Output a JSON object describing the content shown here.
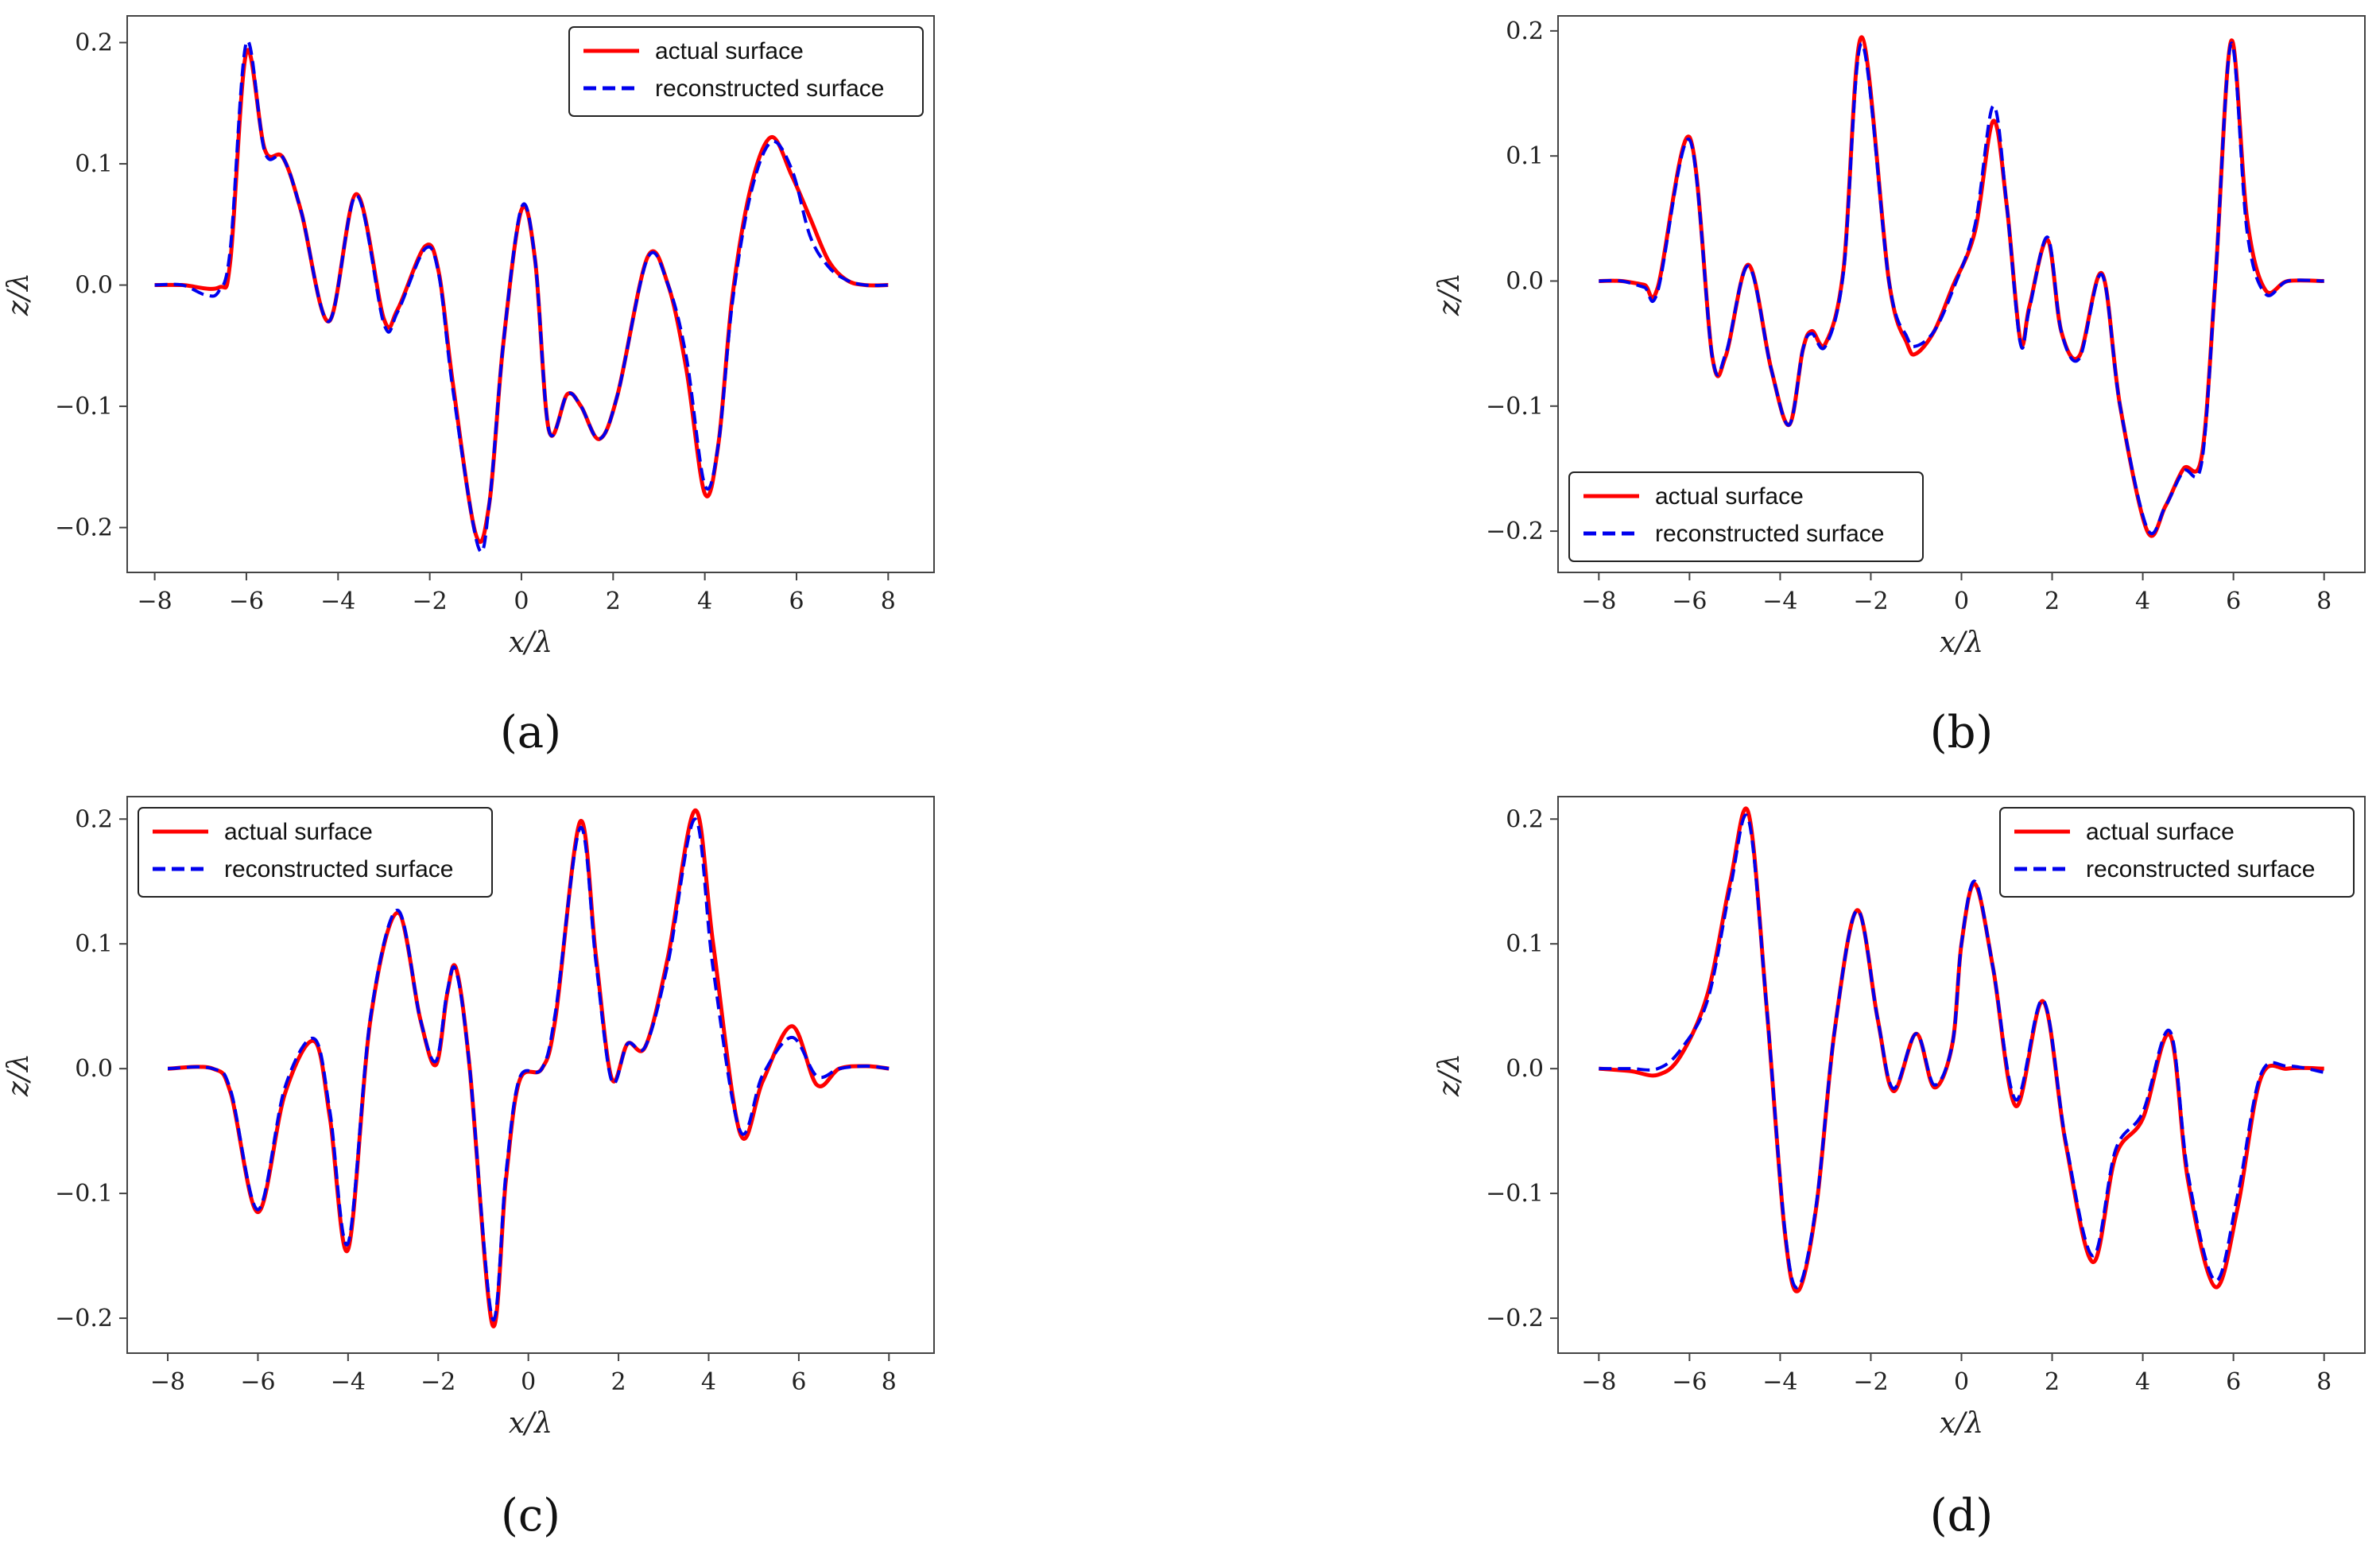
{
  "figure": {
    "colors": {
      "actual": "#ff0000",
      "reconstructed": "#0000ee",
      "axis": "#444444"
    }
  },
  "chart_data": [
    {
      "id": "a",
      "panel_label": "(a)",
      "type": "line",
      "xlabel": "x/λ",
      "ylabel": "z/λ",
      "xlim": [
        -8.6,
        9.0
      ],
      "ylim": [
        -0.237,
        0.222
      ],
      "xticks": [
        -8,
        -6,
        -4,
        -2,
        0,
        2,
        4,
        6,
        8
      ],
      "yticks": [
        -0.2,
        -0.1,
        0.0,
        0.1,
        0.2
      ],
      "ytick_labels": [
        "−0.2",
        "−0.1",
        "0.0",
        "0.1",
        "0.2"
      ],
      "xtick_labels": [
        "−8",
        "−6",
        "−4",
        "−2",
        "0",
        "2",
        "4",
        "6",
        "8"
      ],
      "legend_position": "top-right",
      "series": [
        {
          "name": "actual surface",
          "style": "solid",
          "x": [
            -8,
            -7.4,
            -6.6,
            -6.35,
            -6.0,
            -5.6,
            -5.2,
            -4.8,
            -4.2,
            -3.6,
            -3.0,
            -2.7,
            -2.1,
            -1.8,
            -1.5,
            -1.0,
            -0.7,
            -0.4,
            0.0,
            0.3,
            0.6,
            1.0,
            1.3,
            1.7,
            2.1,
            2.75,
            3.2,
            3.6,
            4.0,
            4.3,
            4.6,
            5.0,
            5.45,
            5.9,
            6.3,
            6.7,
            7.1,
            7.5,
            8.0
          ],
          "values": [
            0.0,
            0.0,
            -0.002,
            0.02,
            0.192,
            0.112,
            0.105,
            0.06,
            -0.03,
            0.075,
            -0.028,
            -0.02,
            0.032,
            0.01,
            -0.08,
            -0.205,
            -0.18,
            -0.05,
            0.062,
            0.02,
            -0.12,
            -0.09,
            -0.1,
            -0.127,
            -0.09,
            0.023,
            0.0,
            -0.07,
            -0.172,
            -0.13,
            -0.01,
            0.08,
            0.122,
            0.09,
            0.055,
            0.02,
            0.004,
            0.0,
            0.0
          ]
        },
        {
          "name": "reconstructed surface",
          "style": "dashed",
          "x": [
            -8,
            -7.4,
            -6.9,
            -6.6,
            -6.35,
            -6.0,
            -5.6,
            -5.2,
            -4.8,
            -4.2,
            -3.6,
            -3.0,
            -2.7,
            -2.1,
            -1.8,
            -1.5,
            -0.95,
            -0.7,
            -0.4,
            0.0,
            0.3,
            0.6,
            1.0,
            1.3,
            1.7,
            2.1,
            2.75,
            3.2,
            3.6,
            4.0,
            4.3,
            4.6,
            5.0,
            5.45,
            5.9,
            6.3,
            6.7,
            7.1,
            7.5,
            8.0
          ],
          "values": [
            0.0,
            0.0,
            -0.008,
            -0.005,
            0.03,
            0.2,
            0.11,
            0.105,
            0.06,
            -0.03,
            0.074,
            -0.032,
            -0.022,
            0.03,
            0.008,
            -0.085,
            -0.215,
            -0.18,
            -0.05,
            0.064,
            0.02,
            -0.12,
            -0.09,
            -0.1,
            -0.127,
            -0.09,
            0.022,
            0.0,
            -0.06,
            -0.165,
            -0.13,
            -0.015,
            0.075,
            0.118,
            0.095,
            0.04,
            0.015,
            0.004,
            0.0,
            0.0
          ]
        }
      ]
    },
    {
      "id": "b",
      "panel_label": "(b)",
      "type": "line",
      "xlabel": "x/λ",
      "ylabel": "z/λ",
      "xlim": [
        -8.9,
        8.9
      ],
      "ylim": [
        -0.233,
        0.212
      ],
      "xticks": [
        -8,
        -6,
        -4,
        -2,
        0,
        2,
        4,
        6,
        8
      ],
      "yticks": [
        -0.2,
        -0.1,
        0.0,
        0.1,
        0.2
      ],
      "ytick_labels": [
        "−0.2",
        "−0.1",
        "0.0",
        "0.1",
        "0.2"
      ],
      "xtick_labels": [
        "−8",
        "−6",
        "−4",
        "−2",
        "0",
        "2",
        "4",
        "6",
        "8"
      ],
      "legend_position": "bottom-left",
      "series": [
        {
          "name": "actual surface",
          "style": "solid",
          "x": [
            -8,
            -7.5,
            -7.0,
            -6.7,
            -6.0,
            -5.5,
            -5.2,
            -4.7,
            -4.2,
            -3.8,
            -3.5,
            -3.3,
            -3.0,
            -2.6,
            -2.2,
            -1.6,
            -1.2,
            -1.0,
            -0.6,
            -0.2,
            0.3,
            0.7,
            1.0,
            1.3,
            1.5,
            1.9,
            2.2,
            2.6,
            3.1,
            3.5,
            4.1,
            4.5,
            4.9,
            5.3,
            5.6,
            5.95,
            6.3,
            6.7,
            7.2,
            8.0
          ],
          "values": [
            0.0,
            0.0,
            -0.003,
            -0.005,
            0.115,
            -0.06,
            -0.06,
            0.013,
            -0.07,
            -0.115,
            -0.055,
            -0.04,
            -0.05,
            0.01,
            0.195,
            0.0,
            -0.05,
            -0.058,
            -0.04,
            -0.005,
            0.04,
            0.128,
            0.06,
            -0.048,
            -0.02,
            0.033,
            -0.04,
            -0.06,
            0.006,
            -0.1,
            -0.2,
            -0.18,
            -0.15,
            -0.14,
            0.0,
            0.192,
            0.05,
            -0.007,
            0.0,
            0.0
          ]
        },
        {
          "name": "reconstructed surface",
          "style": "dashed",
          "x": [
            -8,
            -7.5,
            -7.0,
            -6.7,
            -6.0,
            -5.5,
            -5.2,
            -4.7,
            -4.2,
            -3.8,
            -3.5,
            -3.3,
            -3.0,
            -2.6,
            -2.2,
            -1.6,
            -1.2,
            -1.0,
            -0.6,
            -0.2,
            0.3,
            0.7,
            1.0,
            1.3,
            1.5,
            1.9,
            2.2,
            2.6,
            3.1,
            3.5,
            4.1,
            4.5,
            4.9,
            5.3,
            5.6,
            5.95,
            6.3,
            6.7,
            7.2,
            8.0
          ],
          "values": [
            0.0,
            0.0,
            -0.005,
            -0.008,
            0.113,
            -0.06,
            -0.058,
            0.012,
            -0.07,
            -0.115,
            -0.055,
            -0.042,
            -0.052,
            0.008,
            0.19,
            0.0,
            -0.045,
            -0.052,
            -0.04,
            -0.008,
            0.045,
            0.14,
            0.06,
            -0.05,
            -0.022,
            0.035,
            -0.04,
            -0.062,
            0.005,
            -0.1,
            -0.198,
            -0.18,
            -0.152,
            -0.145,
            0.0,
            0.19,
            0.04,
            -0.01,
            0.0,
            0.0
          ]
        }
      ]
    },
    {
      "id": "c",
      "panel_label": "(c)",
      "type": "line",
      "xlabel": "x/λ",
      "ylabel": "z/λ",
      "xlim": [
        -8.9,
        9.0
      ],
      "ylim": [
        -0.228,
        0.218
      ],
      "xticks": [
        -8,
        -6,
        -4,
        -2,
        0,
        2,
        4,
        6,
        8
      ],
      "yticks": [
        -0.2,
        -0.1,
        0.0,
        0.1,
        0.2
      ],
      "ytick_labels": [
        "−0.2",
        "−0.1",
        "0.0",
        "0.1",
        "0.2"
      ],
      "xtick_labels": [
        "−8",
        "−6",
        "−4",
        "−2",
        "0",
        "2",
        "4",
        "6",
        "8"
      ],
      "legend_position": "top-left",
      "series": [
        {
          "name": "actual surface",
          "style": "solid",
          "x": [
            -8,
            -7.0,
            -6.6,
            -6.0,
            -5.4,
            -4.75,
            -4.4,
            -4.0,
            -3.5,
            -2.9,
            -2.4,
            -2.05,
            -1.8,
            -1.6,
            -1.3,
            -0.8,
            -0.5,
            -0.2,
            0.3,
            0.6,
            1.15,
            1.5,
            1.85,
            2.2,
            2.6,
            3.1,
            3.7,
            4.1,
            4.7,
            5.2,
            5.85,
            6.4,
            6.9,
            7.5,
            8.0
          ],
          "values": [
            0.0,
            0.0,
            -0.02,
            -0.115,
            -0.02,
            0.022,
            -0.04,
            -0.145,
            0.04,
            0.125,
            0.04,
            0.003,
            0.06,
            0.08,
            0.0,
            -0.205,
            -0.09,
            -0.01,
            0.0,
            0.04,
            0.198,
            0.09,
            -0.008,
            0.02,
            0.018,
            0.09,
            0.207,
            0.1,
            -0.052,
            -0.01,
            0.034,
            -0.013,
            0.0,
            0.002,
            0.0
          ]
        },
        {
          "name": "reconstructed surface",
          "style": "dashed",
          "x": [
            -8,
            -7.0,
            -6.6,
            -6.0,
            -5.4,
            -4.75,
            -4.4,
            -4.0,
            -3.5,
            -2.9,
            -2.4,
            -2.05,
            -1.8,
            -1.6,
            -1.3,
            -0.8,
            -0.5,
            -0.2,
            0.3,
            0.6,
            1.15,
            1.5,
            1.85,
            2.2,
            2.6,
            3.1,
            3.7,
            4.1,
            4.7,
            5.2,
            5.85,
            6.4,
            6.9,
            7.5,
            8.0
          ],
          "values": [
            0.0,
            0.0,
            -0.018,
            -0.113,
            -0.015,
            0.024,
            -0.035,
            -0.14,
            0.042,
            0.127,
            0.04,
            0.006,
            0.062,
            0.078,
            0.0,
            -0.2,
            -0.085,
            -0.008,
            0.0,
            0.045,
            0.193,
            0.085,
            -0.01,
            0.02,
            0.018,
            0.085,
            0.2,
            0.08,
            -0.05,
            -0.005,
            0.025,
            -0.006,
            0.0,
            0.002,
            0.0
          ]
        }
      ]
    },
    {
      "id": "d",
      "panel_label": "(d)",
      "type": "line",
      "xlabel": "x/λ",
      "ylabel": "z/λ",
      "xlim": [
        -8.9,
        8.9
      ],
      "ylim": [
        -0.228,
        0.218
      ],
      "xticks": [
        -8,
        -6,
        -4,
        -2,
        0,
        2,
        4,
        6,
        8
      ],
      "yticks": [
        -0.2,
        -0.1,
        0.0,
        0.1,
        0.2
      ],
      "ytick_labels": [
        "−0.2",
        "−0.1",
        "0.0",
        "0.1",
        "0.2"
      ],
      "xtick_labels": [
        "−8",
        "−6",
        "−4",
        "−2",
        "0",
        "2",
        "4",
        "6",
        "8"
      ],
      "legend_position": "top-right",
      "series": [
        {
          "name": "actual surface",
          "style": "solid",
          "x": [
            -8,
            -7.3,
            -6.7,
            -6.2,
            -5.6,
            -5.1,
            -4.7,
            -4.3,
            -3.9,
            -3.6,
            -3.2,
            -2.8,
            -2.3,
            -1.85,
            -1.5,
            -1.0,
            -0.6,
            -0.2,
            0.0,
            0.3,
            0.7,
            1.2,
            1.8,
            2.3,
            2.9,
            3.4,
            4.0,
            4.6,
            5.0,
            5.6,
            6.1,
            6.6,
            7.2,
            8.0
          ],
          "values": [
            0.0,
            -0.002,
            -0.005,
            0.01,
            0.06,
            0.15,
            0.205,
            0.05,
            -0.13,
            -0.178,
            -0.11,
            0.03,
            0.127,
            0.04,
            -0.018,
            0.028,
            -0.015,
            0.02,
            0.1,
            0.148,
            0.08,
            -0.03,
            0.054,
            -0.06,
            -0.155,
            -0.07,
            -0.04,
            0.027,
            -0.09,
            -0.175,
            -0.11,
            -0.008,
            0.0,
            0.0
          ]
        },
        {
          "name": "reconstructed surface",
          "style": "dashed",
          "x": [
            -8,
            -7.3,
            -6.7,
            -6.2,
            -5.6,
            -5.1,
            -4.7,
            -4.3,
            -3.9,
            -3.6,
            -3.2,
            -2.8,
            -2.3,
            -1.85,
            -1.5,
            -1.0,
            -0.6,
            -0.2,
            0.0,
            0.3,
            0.7,
            1.2,
            1.8,
            2.3,
            2.9,
            3.4,
            4.0,
            4.6,
            5.0,
            5.6,
            6.1,
            6.6,
            7.2,
            8.0
          ],
          "values": [
            0.0,
            0.0,
            0.0,
            0.015,
            0.055,
            0.145,
            0.2,
            0.05,
            -0.128,
            -0.175,
            -0.108,
            0.03,
            0.127,
            0.04,
            -0.016,
            0.028,
            -0.013,
            0.02,
            0.1,
            0.15,
            0.08,
            -0.025,
            0.055,
            -0.058,
            -0.15,
            -0.065,
            -0.035,
            0.03,
            -0.085,
            -0.17,
            -0.1,
            -0.005,
            0.002,
            -0.003
          ]
        }
      ]
    }
  ]
}
